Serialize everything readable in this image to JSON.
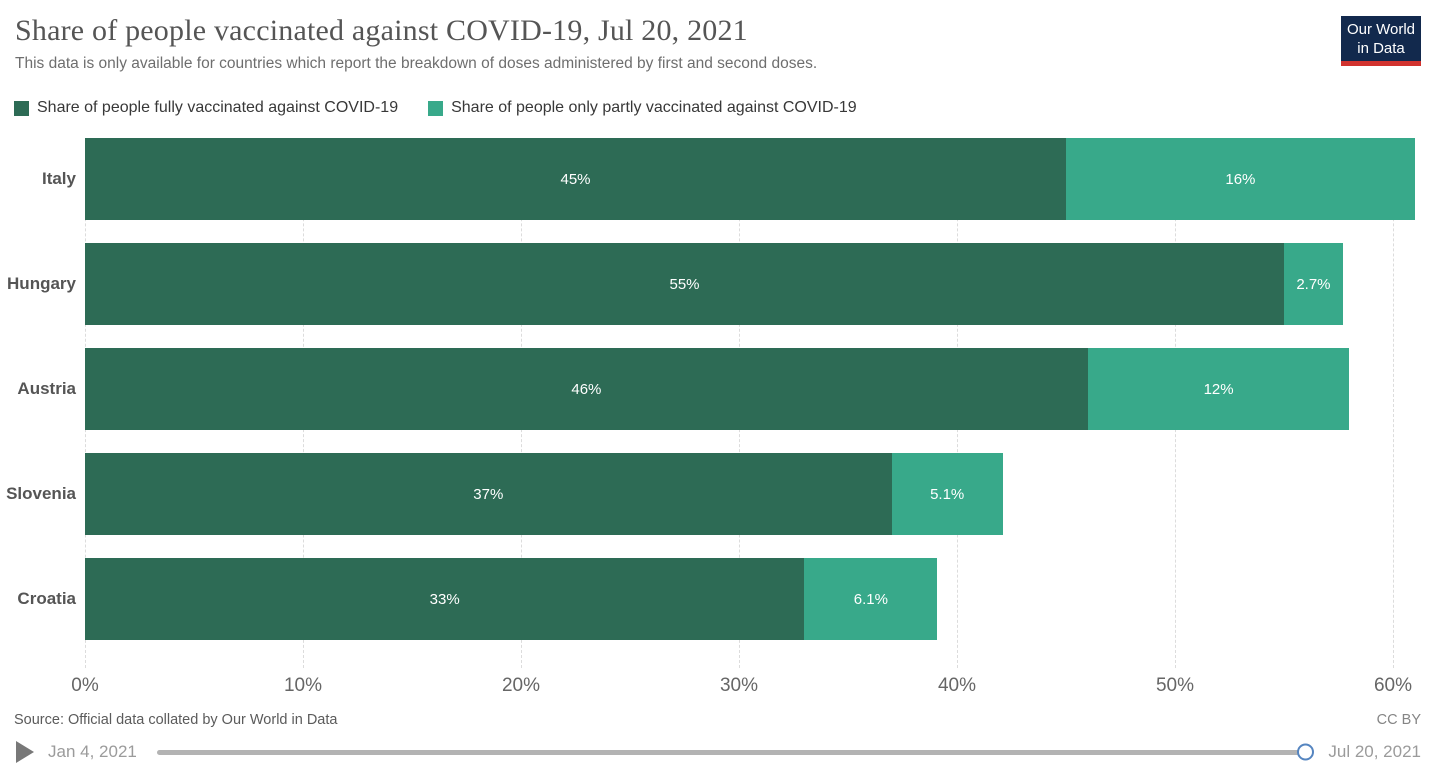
{
  "header": {
    "title": "Share of people vaccinated against COVID-19, Jul 20, 2021",
    "subtitle": "This data is only available for countries which report the breakdown of doses administered by first and second doses.",
    "logo": {
      "line1": "Our World",
      "line2": "in Data",
      "bg_color": "#12294d",
      "accent_color": "#d1322e"
    }
  },
  "legend": {
    "items": [
      {
        "label": "Share of people fully vaccinated against COVID-19",
        "color": "#2d6b55"
      },
      {
        "label": "Share of people only partly vaccinated against COVID-19",
        "color": "#38a98a"
      }
    ]
  },
  "chart_data": {
    "type": "bar",
    "orientation": "horizontal",
    "stacked": true,
    "title": "Share of people vaccinated against COVID-19, Jul 20, 2021",
    "categories": [
      "Italy",
      "Hungary",
      "Austria",
      "Slovenia",
      "Croatia"
    ],
    "series": [
      {
        "name": "Share of people fully vaccinated against COVID-19",
        "color": "#2d6b55",
        "values": [
          45,
          55,
          46,
          37,
          33
        ],
        "labels": [
          "45%",
          "55%",
          "46%",
          "37%",
          "33%"
        ]
      },
      {
        "name": "Share of people only partly vaccinated against COVID-19",
        "color": "#38a98a",
        "values": [
          16,
          2.7,
          12,
          5.1,
          6.1
        ],
        "labels": [
          "16%",
          "2.7%",
          "12%",
          "5.1%",
          "6.1%"
        ]
      }
    ],
    "x_tick_values": [
      0,
      10,
      20,
      30,
      40,
      50,
      60
    ],
    "x_ticks": [
      "0%",
      "10%",
      "20%",
      "30%",
      "40%",
      "50%",
      "60%"
    ],
    "xlim": [
      0,
      61.5
    ],
    "grid": "dashed-vertical",
    "legend_position": "top"
  },
  "footer": {
    "source_label": "Source: Official data collated by Our World in Data",
    "license_label": "CC BY"
  },
  "timeline": {
    "start_label": "Jan 4, 2021",
    "end_label": "Jul 20, 2021"
  }
}
